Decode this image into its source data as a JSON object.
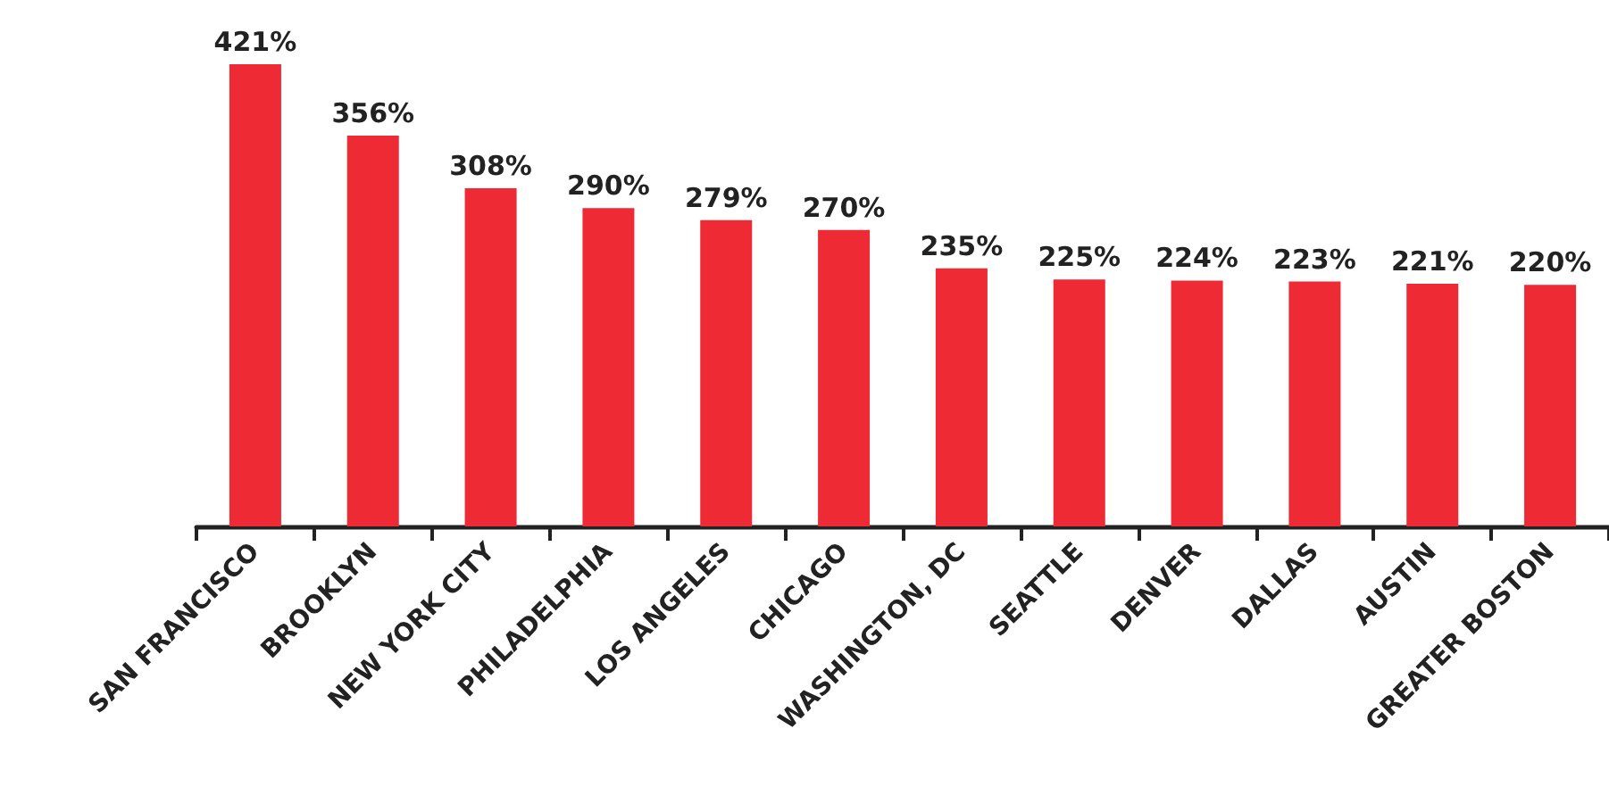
{
  "chart_data": {
    "type": "bar",
    "categories": [
      "SAN FRANCISCO",
      "BROOKLYN",
      "NEW YORK CITY",
      "PHILADELPHIA",
      "LOS ANGELES",
      "CHICAGO",
      "WASHINGTON, DC",
      "SEATTLE",
      "DENVER",
      "DALLAS",
      "AUSTIN",
      "GREATER BOSTON"
    ],
    "values": [
      421,
      356,
      308,
      290,
      279,
      270,
      235,
      225,
      224,
      223,
      221,
      220
    ],
    "color": "#ee2a35",
    "data_labels": true,
    "value_labels": [
      "421%",
      "356%",
      "308%",
      "290%",
      "279%",
      "270%",
      "235%",
      "225%",
      "224%",
      "223%",
      "221%",
      "220%"
    ]
  }
}
